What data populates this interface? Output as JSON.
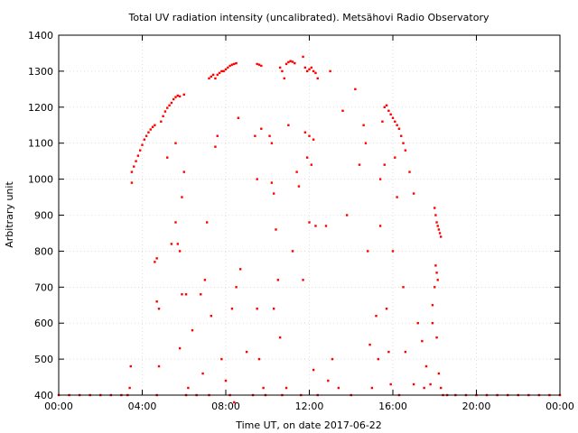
{
  "chart_data": {
    "type": "scatter",
    "title": "Total UV radiation intensity (uncalibrated). Metsähovi Radio Observatory",
    "xlabel": "Time UT, on date 2017-06-22",
    "ylabel": "Arbitrary unit",
    "x_unit": "hours",
    "xlim": [
      0,
      24
    ],
    "ylim": [
      400,
      1400
    ],
    "x_ticks": [
      {
        "value": 0,
        "label": "00:00"
      },
      {
        "value": 4,
        "label": "04:00"
      },
      {
        "value": 8,
        "label": "08:00"
      },
      {
        "value": 12,
        "label": "12:00"
      },
      {
        "value": 16,
        "label": "16:00"
      },
      {
        "value": 20,
        "label": "20:00"
      },
      {
        "value": 24,
        "label": "00:00"
      }
    ],
    "y_ticks": [
      400,
      500,
      600,
      700,
      800,
      900,
      1000,
      1100,
      1200,
      1300,
      1400
    ],
    "grid": true,
    "marker_color": "#ff0000",
    "series": [
      {
        "name": "",
        "points": [
          [
            0.0,
            400
          ],
          [
            0.5,
            400
          ],
          [
            1.0,
            400
          ],
          [
            1.5,
            400
          ],
          [
            2.0,
            400
          ],
          [
            2.5,
            400
          ],
          [
            3.0,
            400
          ],
          [
            3.3,
            400
          ],
          [
            3.4,
            420
          ],
          [
            3.45,
            480
          ],
          [
            3.5,
            990
          ],
          [
            3.5,
            1020
          ],
          [
            3.6,
            1035
          ],
          [
            3.7,
            1050
          ],
          [
            3.8,
            1065
          ],
          [
            3.9,
            1080
          ],
          [
            4.0,
            1095
          ],
          [
            4.1,
            1110
          ],
          [
            4.2,
            1120
          ],
          [
            4.3,
            1130
          ],
          [
            4.4,
            1138
          ],
          [
            4.5,
            1145
          ],
          [
            4.6,
            1150
          ],
          [
            4.6,
            770
          ],
          [
            4.7,
            780
          ],
          [
            4.7,
            660
          ],
          [
            4.8,
            640
          ],
          [
            4.8,
            480
          ],
          [
            4.7,
            400
          ],
          [
            4.9,
            1160
          ],
          [
            5.0,
            1175
          ],
          [
            5.1,
            1188
          ],
          [
            5.2,
            1198
          ],
          [
            5.3,
            1205
          ],
          [
            5.4,
            1212
          ],
          [
            5.5,
            1222
          ],
          [
            5.6,
            1228
          ],
          [
            5.7,
            1232
          ],
          [
            5.8,
            1230
          ],
          [
            6.0,
            1235
          ],
          [
            5.2,
            1060
          ],
          [
            5.4,
            820
          ],
          [
            5.6,
            1100
          ],
          [
            5.6,
            880
          ],
          [
            5.7,
            820
          ],
          [
            5.8,
            800
          ],
          [
            5.9,
            950
          ],
          [
            5.9,
            680
          ],
          [
            6.0,
            1020
          ],
          [
            6.1,
            680
          ],
          [
            5.8,
            530
          ],
          [
            6.2,
            420
          ],
          [
            6.1,
            400
          ],
          [
            6.4,
            580
          ],
          [
            6.6,
            400
          ],
          [
            6.8,
            680
          ],
          [
            6.9,
            460
          ],
          [
            7.0,
            720
          ],
          [
            7.1,
            880
          ],
          [
            7.2,
            400
          ],
          [
            7.2,
            1280
          ],
          [
            7.3,
            1285
          ],
          [
            7.4,
            1290
          ],
          [
            7.5,
            1280
          ],
          [
            7.6,
            1290
          ],
          [
            7.7,
            1295
          ],
          [
            7.8,
            1300
          ],
          [
            7.9,
            1300
          ],
          [
            8.0,
            1305
          ],
          [
            8.1,
            1310
          ],
          [
            8.2,
            1315
          ],
          [
            8.3,
            1318
          ],
          [
            8.4,
            1320
          ],
          [
            8.5,
            1322
          ],
          [
            7.5,
            1090
          ],
          [
            7.6,
            1120
          ],
          [
            7.3,
            620
          ],
          [
            7.8,
            500
          ],
          [
            8.0,
            440
          ],
          [
            8.2,
            400
          ],
          [
            8.3,
            640
          ],
          [
            8.4,
            380
          ],
          [
            8.5,
            700
          ],
          [
            8.6,
            1170
          ],
          [
            8.7,
            750
          ],
          [
            9.0,
            520
          ],
          [
            9.3,
            400
          ],
          [
            9.5,
            1320
          ],
          [
            9.6,
            1318
          ],
          [
            9.7,
            1315
          ],
          [
            9.5,
            1000
          ],
          [
            9.4,
            1120
          ],
          [
            9.7,
            1140
          ],
          [
            9.6,
            500
          ],
          [
            9.5,
            640
          ],
          [
            9.8,
            420
          ],
          [
            9.9,
            400
          ],
          [
            10.1,
            1120
          ],
          [
            10.2,
            1100
          ],
          [
            10.2,
            990
          ],
          [
            10.3,
            960
          ],
          [
            10.4,
            860
          ],
          [
            10.5,
            720
          ],
          [
            10.3,
            640
          ],
          [
            10.6,
            560
          ],
          [
            10.6,
            1310
          ],
          [
            10.7,
            1300
          ],
          [
            10.8,
            1280
          ],
          [
            10.9,
            1320
          ],
          [
            11.0,
            1325
          ],
          [
            11.1,
            1328
          ],
          [
            11.2,
            1326
          ],
          [
            11.3,
            1322
          ],
          [
            10.7,
            400
          ],
          [
            10.9,
            420
          ],
          [
            11.0,
            1150
          ],
          [
            11.2,
            800
          ],
          [
            11.4,
            1020
          ],
          [
            11.5,
            980
          ],
          [
            11.6,
            400
          ],
          [
            11.7,
            720
          ],
          [
            11.7,
            1340
          ],
          [
            11.8,
            1310
          ],
          [
            11.9,
            1300
          ],
          [
            12.0,
            1305
          ],
          [
            12.1,
            1310
          ],
          [
            12.2,
            1300
          ],
          [
            12.3,
            1295
          ],
          [
            12.4,
            1280
          ],
          [
            11.8,
            1130
          ],
          [
            11.9,
            1060
          ],
          [
            12.0,
            1120
          ],
          [
            12.0,
            880
          ],
          [
            12.1,
            1040
          ],
          [
            12.2,
            1110
          ],
          [
            12.3,
            870
          ],
          [
            12.2,
            470
          ],
          [
            12.4,
            400
          ],
          [
            12.8,
            870
          ],
          [
            12.9,
            440
          ],
          [
            13.0,
            1300
          ],
          [
            13.1,
            500
          ],
          [
            13.4,
            420
          ],
          [
            13.6,
            1190
          ],
          [
            13.8,
            900
          ],
          [
            14.0,
            400
          ],
          [
            14.2,
            1250
          ],
          [
            14.4,
            1040
          ],
          [
            14.6,
            1150
          ],
          [
            14.7,
            1100
          ],
          [
            14.8,
            800
          ],
          [
            14.9,
            540
          ],
          [
            15.0,
            420
          ],
          [
            15.2,
            620
          ],
          [
            15.3,
            500
          ],
          [
            15.4,
            1000
          ],
          [
            15.4,
            870
          ],
          [
            15.5,
            1160
          ],
          [
            15.6,
            1200
          ],
          [
            15.7,
            1205
          ],
          [
            15.8,
            1190
          ],
          [
            15.9,
            1180
          ],
          [
            16.0,
            1170
          ],
          [
            16.1,
            1160
          ],
          [
            16.2,
            1150
          ],
          [
            16.3,
            1140
          ],
          [
            16.4,
            1120
          ],
          [
            16.5,
            1100
          ],
          [
            16.6,
            1080
          ],
          [
            15.6,
            1040
          ],
          [
            15.7,
            640
          ],
          [
            15.8,
            520
          ],
          [
            15.9,
            430
          ],
          [
            16.0,
            800
          ],
          [
            16.1,
            1060
          ],
          [
            16.2,
            950
          ],
          [
            16.3,
            400
          ],
          [
            16.5,
            700
          ],
          [
            16.6,
            520
          ],
          [
            16.8,
            1020
          ],
          [
            17.0,
            960
          ],
          [
            17.0,
            430
          ],
          [
            17.2,
            600
          ],
          [
            17.4,
            550
          ],
          [
            17.5,
            420
          ],
          [
            17.6,
            480
          ],
          [
            17.8,
            430
          ],
          [
            17.9,
            600
          ],
          [
            18.0,
            920
          ],
          [
            18.05,
            900
          ],
          [
            18.1,
            880
          ],
          [
            18.15,
            870
          ],
          [
            18.2,
            860
          ],
          [
            18.25,
            850
          ],
          [
            18.3,
            840
          ],
          [
            18.05,
            760
          ],
          [
            18.1,
            740
          ],
          [
            18.15,
            720
          ],
          [
            18.0,
            700
          ],
          [
            17.9,
            650
          ],
          [
            18.1,
            560
          ],
          [
            18.2,
            460
          ],
          [
            18.3,
            420
          ],
          [
            18.4,
            400
          ],
          [
            18.6,
            400
          ],
          [
            19.0,
            400
          ],
          [
            19.5,
            400
          ],
          [
            20.0,
            400
          ],
          [
            20.5,
            400
          ],
          [
            21.0,
            400
          ],
          [
            21.5,
            400
          ],
          [
            22.0,
            400
          ],
          [
            22.5,
            400
          ],
          [
            23.0,
            400
          ],
          [
            23.5,
            400
          ],
          [
            24.0,
            400
          ]
        ]
      }
    ]
  }
}
